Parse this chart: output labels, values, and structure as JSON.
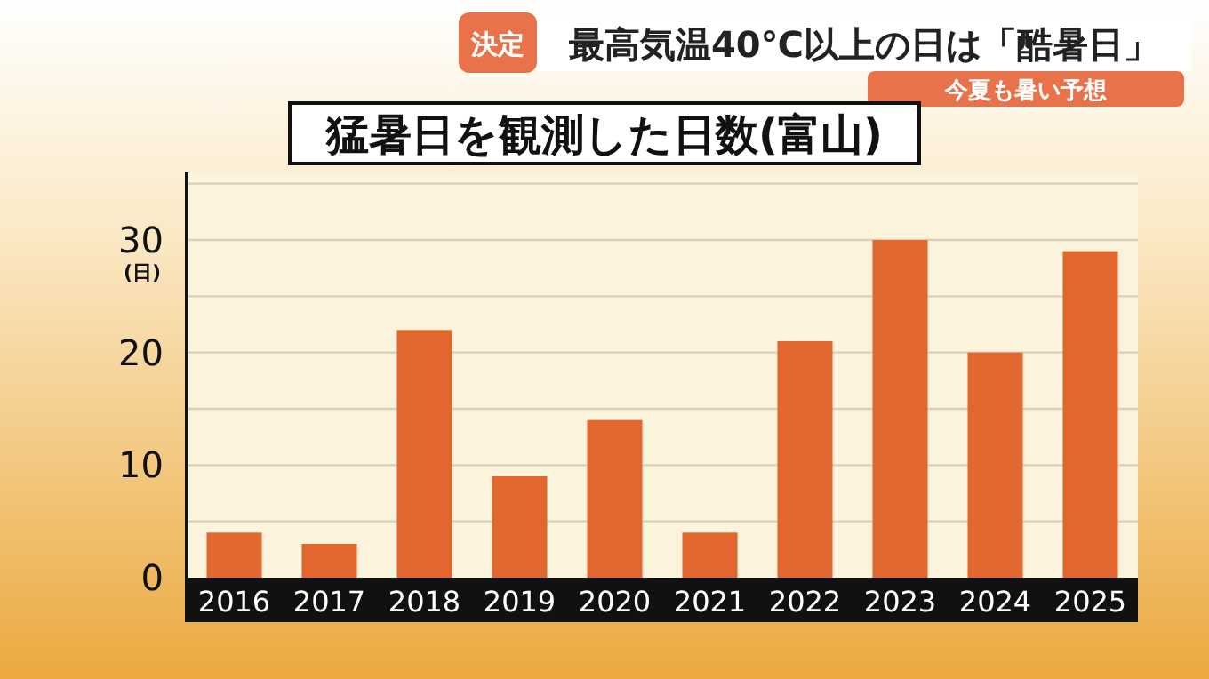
{
  "chart_data": {
    "type": "bar",
    "title": "猛暑日を観測した日数(富山)",
    "ylabel": "(日)",
    "annotations": [
      "決定",
      "最高気温40℃以上の日は「酷暑日」",
      "今夏も暑い予想"
    ],
    "categories": [
      "2016",
      "2017",
      "2018",
      "2019",
      "2020",
      "2021",
      "2022",
      "2023",
      "2024",
      "2025"
    ],
    "values": [
      4,
      3,
      22,
      9,
      14,
      4,
      21,
      30,
      20,
      29
    ],
    "color": "#e2672e",
    "ylim": [
      0,
      36
    ],
    "yticks": [
      0,
      {
        "value": 5,
        "label": null
      },
      10,
      {
        "value": 15,
        "label": null
      },
      20,
      {
        "value": 25,
        "label": null
      },
      30,
      {
        "value": 35,
        "label": null
      }
    ],
    "grid": "y"
  }
}
